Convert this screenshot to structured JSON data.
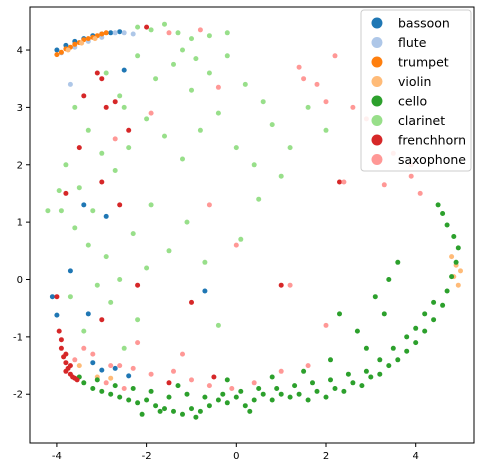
{
  "chart_data": {
    "type": "scatter",
    "title": "",
    "xlabel": "",
    "ylabel": "",
    "xlim": [
      -4.6,
      5.3
    ],
    "ylim": [
      -2.85,
      4.75
    ],
    "x_ticks": [
      -4,
      -2,
      0,
      2,
      4
    ],
    "y_ticks": [
      -2,
      -1,
      0,
      1,
      2,
      3,
      4
    ],
    "grid": false,
    "legend_position": "top-right",
    "series": [
      {
        "name": "bassoon",
        "color": "#1f77b4",
        "points": [
          [
            -4.0,
            4.0
          ],
          [
            -3.8,
            4.08
          ],
          [
            -3.6,
            4.15
          ],
          [
            -3.4,
            4.2
          ],
          [
            -3.2,
            4.25
          ],
          [
            -3.0,
            4.28
          ],
          [
            -2.8,
            4.3
          ],
          [
            -2.6,
            4.32
          ],
          [
            -2.5,
            3.65
          ],
          [
            -3.4,
            1.3
          ],
          [
            -2.9,
            1.1
          ],
          [
            -3.7,
            0.15
          ],
          [
            -4.1,
            -0.3
          ],
          [
            -4.0,
            -0.62
          ],
          [
            -3.3,
            -0.6
          ],
          [
            -0.7,
            -0.2
          ],
          [
            -3.2,
            -1.45
          ],
          [
            -3.0,
            -1.58
          ],
          [
            -2.7,
            -1.55
          ],
          [
            -2.4,
            -1.68
          ]
        ]
      },
      {
        "name": "flute",
        "color": "#aec7e8",
        "points": [
          [
            -3.9,
            3.95
          ],
          [
            -3.6,
            4.05
          ],
          [
            -3.3,
            4.15
          ],
          [
            -3.0,
            4.22
          ],
          [
            -2.7,
            4.3
          ],
          [
            -2.5,
            4.3
          ],
          [
            -2.3,
            4.28
          ],
          [
            -3.7,
            3.4
          ]
        ]
      },
      {
        "name": "trumpet",
        "color": "#ff7f0e",
        "points": [
          [
            -4.0,
            3.92
          ],
          [
            -3.9,
            3.96
          ],
          [
            -3.8,
            4.02
          ],
          [
            -3.7,
            4.05
          ],
          [
            -3.6,
            4.1
          ],
          [
            -3.5,
            4.13
          ],
          [
            -3.4,
            4.18
          ],
          [
            -3.3,
            4.2
          ],
          [
            -3.2,
            4.22
          ],
          [
            -3.1,
            4.25
          ],
          [
            -3.0,
            4.28
          ],
          [
            -2.9,
            4.3
          ]
        ]
      },
      {
        "name": "violin",
        "color": "#ffbb78",
        "points": [
          [
            -3.75,
            4.0
          ],
          [
            -3.45,
            4.12
          ],
          [
            -3.15,
            4.2
          ],
          [
            -3.5,
            -1.5
          ],
          [
            -3.1,
            -1.7
          ],
          [
            -2.8,
            -1.72
          ],
          [
            4.9,
            0.25
          ],
          [
            5.0,
            0.15
          ],
          [
            4.85,
            0.05
          ],
          [
            4.95,
            -0.1
          ],
          [
            4.8,
            0.4
          ]
        ]
      },
      {
        "name": "cello",
        "color": "#2ca02c",
        "points": [
          [
            -3.4,
            -1.8
          ],
          [
            -3.2,
            -1.9
          ],
          [
            -3.0,
            -1.95
          ],
          [
            -2.8,
            -2.0
          ],
          [
            -2.6,
            -2.05
          ],
          [
            -2.4,
            -2.1
          ],
          [
            -2.2,
            -2.15
          ],
          [
            -2.0,
            -2.1
          ],
          [
            -1.8,
            -2.2
          ],
          [
            -1.6,
            -2.25
          ],
          [
            -1.4,
            -2.3
          ],
          [
            -1.2,
            -2.35
          ],
          [
            -1.0,
            -2.25
          ],
          [
            -0.8,
            -2.3
          ],
          [
            -0.6,
            -2.2
          ],
          [
            -0.4,
            -2.1
          ],
          [
            -0.2,
            -2.15
          ],
          [
            0.0,
            -2.05
          ],
          [
            0.2,
            -2.2
          ],
          [
            0.4,
            -2.1
          ],
          [
            0.6,
            -2.0
          ],
          [
            0.8,
            -2.1
          ],
          [
            1.0,
            -2.0
          ],
          [
            1.2,
            -2.05
          ],
          [
            1.4,
            -2.0
          ],
          [
            1.6,
            -2.1
          ],
          [
            1.8,
            -1.95
          ],
          [
            2.0,
            -2.05
          ],
          [
            2.2,
            -1.9
          ],
          [
            2.4,
            -1.95
          ],
          [
            2.6,
            -1.8
          ],
          [
            2.8,
            -1.85
          ],
          [
            3.0,
            -1.7
          ],
          [
            3.2,
            -1.65
          ],
          [
            3.4,
            -1.5
          ],
          [
            3.6,
            -1.4
          ],
          [
            3.8,
            -1.25
          ],
          [
            4.0,
            -1.1
          ],
          [
            4.2,
            -0.9
          ],
          [
            4.4,
            -0.7
          ],
          [
            4.6,
            -0.45
          ],
          [
            4.7,
            -0.2
          ],
          [
            4.8,
            0.05
          ],
          [
            4.9,
            0.3
          ],
          [
            4.95,
            0.55
          ],
          [
            4.85,
            0.75
          ],
          [
            4.7,
            0.95
          ],
          [
            4.6,
            1.15
          ],
          [
            4.5,
            1.3
          ],
          [
            4.4,
            -0.4
          ],
          [
            4.2,
            -0.6
          ],
          [
            4.0,
            -0.85
          ],
          [
            3.8,
            -1.0
          ],
          [
            3.5,
            -1.2
          ],
          [
            3.2,
            -1.4
          ],
          [
            2.9,
            -1.6
          ],
          [
            2.5,
            -1.65
          ],
          [
            2.1,
            -1.75
          ],
          [
            1.7,
            -1.8
          ],
          [
            1.3,
            -1.85
          ],
          [
            0.9,
            -1.9
          ],
          [
            0.5,
            -1.9
          ],
          [
            0.1,
            -1.95
          ],
          [
            -0.3,
            -2.0
          ],
          [
            -0.7,
            -2.05
          ],
          [
            -1.1,
            -2.0
          ],
          [
            -1.5,
            -2.05
          ],
          [
            -1.9,
            -1.95
          ],
          [
            -2.3,
            -1.9
          ],
          [
            -2.7,
            -1.85
          ],
          [
            -3.1,
            -1.75
          ],
          [
            -3.5,
            -1.7
          ],
          [
            3.1,
            -0.3
          ],
          [
            3.3,
            -0.6
          ],
          [
            2.7,
            -0.9
          ],
          [
            2.9,
            -1.2
          ],
          [
            3.6,
            0.3
          ],
          [
            3.4,
            0.0
          ],
          [
            2.3,
            -0.6
          ],
          [
            2.1,
            -1.4
          ],
          [
            1.5,
            -1.6
          ],
          [
            0.8,
            -1.7
          ],
          [
            -0.2,
            -1.75
          ],
          [
            -1.3,
            -1.85
          ],
          [
            -2.1,
            -2.35
          ],
          [
            -1.7,
            -2.3
          ],
          [
            -0.9,
            -2.4
          ],
          [
            0.3,
            -2.3
          ]
        ]
      },
      {
        "name": "clarinet",
        "color": "#98df8a",
        "points": [
          [
            -2.2,
            4.4
          ],
          [
            -1.9,
            4.35
          ],
          [
            -1.6,
            4.45
          ],
          [
            -1.3,
            4.3
          ],
          [
            -1.0,
            4.2
          ],
          [
            -0.6,
            4.25
          ],
          [
            -0.2,
            4.3
          ],
          [
            -2.9,
            3.6
          ],
          [
            -2.6,
            3.2
          ],
          [
            -2.2,
            3.9
          ],
          [
            -1.8,
            3.5
          ],
          [
            -1.4,
            3.75
          ],
          [
            -1.0,
            3.3
          ],
          [
            -0.6,
            3.6
          ],
          [
            -0.2,
            3.9
          ],
          [
            0.2,
            3.4
          ],
          [
            -3.6,
            3.0
          ],
          [
            -3.3,
            2.6
          ],
          [
            -3.0,
            2.2
          ],
          [
            -2.7,
            1.9
          ],
          [
            -2.4,
            2.3
          ],
          [
            -2.0,
            2.8
          ],
          [
            -1.6,
            2.5
          ],
          [
            -1.2,
            2.1
          ],
          [
            -0.8,
            2.6
          ],
          [
            -0.4,
            2.9
          ],
          [
            0.0,
            2.3
          ],
          [
            0.4,
            2.0
          ],
          [
            0.8,
            2.7
          ],
          [
            1.2,
            2.3
          ],
          [
            1.6,
            3.0
          ],
          [
            2.0,
            2.6
          ],
          [
            -3.8,
            2.0
          ],
          [
            -3.5,
            1.6
          ],
          [
            -3.2,
            1.2
          ],
          [
            -3.9,
            1.2
          ],
          [
            -3.6,
            0.9
          ],
          [
            -3.3,
            0.6
          ],
          [
            -2.9,
            0.4
          ],
          [
            -2.6,
            0.0
          ],
          [
            -2.3,
            0.8
          ],
          [
            -1.9,
            1.3
          ],
          [
            -1.5,
            0.5
          ],
          [
            -1.1,
            1.0
          ],
          [
            -0.7,
            0.3
          ],
          [
            -0.4,
            -0.8
          ],
          [
            0.1,
            0.7
          ],
          [
            0.5,
            1.4
          ],
          [
            -3.7,
            -0.3
          ],
          [
            -3.4,
            -0.9
          ],
          [
            -3.1,
            -0.1
          ],
          [
            -2.8,
            -0.4
          ],
          [
            -2.5,
            -1.2
          ],
          [
            -2.2,
            -0.7
          ],
          [
            -4.2,
            1.2
          ],
          [
            -3.95,
            1.55
          ],
          [
            -1.2,
            4.0
          ],
          [
            -0.9,
            3.85
          ],
          [
            0.6,
            3.1
          ],
          [
            1.0,
            1.8
          ],
          [
            -2.0,
            0.2
          ],
          [
            -2.5,
            3.0
          ]
        ]
      },
      {
        "name": "frenchhorn",
        "color": "#d62728",
        "points": [
          [
            -3.9,
            -1.2
          ],
          [
            -3.85,
            -1.35
          ],
          [
            -3.8,
            -1.45
          ],
          [
            -3.75,
            -1.55
          ],
          [
            -3.7,
            -1.65
          ],
          [
            -3.6,
            -1.72
          ],
          [
            -3.9,
            -1.05
          ],
          [
            -3.95,
            -0.9
          ],
          [
            -3.8,
            -1.6
          ],
          [
            -3.65,
            -1.7
          ],
          [
            -3.55,
            -1.75
          ],
          [
            -3.7,
            -1.5
          ],
          [
            -3.8,
            -1.3
          ],
          [
            -4.0,
            -0.3
          ],
          [
            -3.4,
            3.2
          ],
          [
            -3.0,
            3.5
          ],
          [
            -2.7,
            3.1
          ],
          [
            -2.4,
            2.6
          ],
          [
            -3.5,
            2.3
          ],
          [
            -2.6,
            1.3
          ],
          [
            -3.8,
            1.5
          ],
          [
            -3.0,
            1.7
          ],
          [
            -2.0,
            4.4
          ],
          [
            -1.0,
            -0.4
          ],
          [
            1.0,
            -0.1
          ],
          [
            2.3,
            1.7
          ],
          [
            -3.0,
            -0.7
          ],
          [
            -2.2,
            -0.1
          ],
          [
            -1.5,
            -1.8
          ],
          [
            -0.5,
            -1.7
          ],
          [
            -2.9,
            3.0
          ],
          [
            -3.1,
            3.6
          ]
        ]
      },
      {
        "name": "saxophone",
        "color": "#ff9896",
        "points": [
          [
            1.4,
            3.7
          ],
          [
            1.5,
            3.5
          ],
          [
            1.8,
            3.4
          ],
          [
            2.0,
            3.1
          ],
          [
            2.6,
            3.0
          ],
          [
            2.9,
            2.8
          ],
          [
            3.5,
            2.2
          ],
          [
            3.9,
            1.8
          ],
          [
            4.1,
            1.5
          ],
          [
            2.4,
            1.7
          ],
          [
            3.3,
            1.65
          ],
          [
            -1.5,
            4.3
          ],
          [
            -0.8,
            4.35
          ],
          [
            -0.4,
            3.35
          ],
          [
            -1.9,
            2.9
          ],
          [
            -2.7,
            2.45
          ],
          [
            -3.6,
            -1.4
          ],
          [
            -3.2,
            -1.3
          ],
          [
            -2.8,
            -1.5
          ],
          [
            -2.3,
            -1.55
          ],
          [
            -1.9,
            -1.65
          ],
          [
            -1.4,
            -1.6
          ],
          [
            -1.0,
            -1.75
          ],
          [
            -0.6,
            -1.85
          ],
          [
            -0.1,
            -1.9
          ],
          [
            0.4,
            -1.8
          ],
          [
            1.0,
            -1.6
          ],
          [
            1.6,
            -1.5
          ],
          [
            -2.9,
            -1.8
          ],
          [
            -2.5,
            -1.9
          ],
          [
            -3.4,
            -1.2
          ],
          [
            -1.2,
            -1.3
          ],
          [
            0.0,
            0.6
          ],
          [
            -0.6,
            1.3
          ],
          [
            2.0,
            -0.8
          ],
          [
            1.2,
            -0.1
          ],
          [
            -2.2,
            -1.1
          ],
          [
            -2.6,
            -1.5
          ],
          [
            3.9,
            2.0
          ],
          [
            2.2,
            3.9
          ]
        ]
      }
    ]
  },
  "legend": {
    "items": [
      {
        "label": "bassoon",
        "color": "#1f77b4"
      },
      {
        "label": "flute",
        "color": "#aec7e8"
      },
      {
        "label": "trumpet",
        "color": "#ff7f0e"
      },
      {
        "label": "violin",
        "color": "#ffbb78"
      },
      {
        "label": "cello",
        "color": "#2ca02c"
      },
      {
        "label": "clarinet",
        "color": "#98df8a"
      },
      {
        "label": "frenchhorn",
        "color": "#d62728"
      },
      {
        "label": "saxophone",
        "color": "#ff9896"
      }
    ]
  }
}
